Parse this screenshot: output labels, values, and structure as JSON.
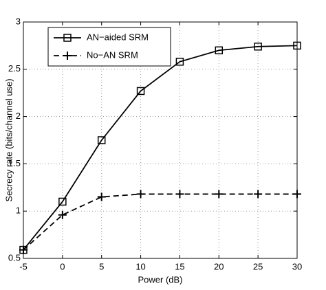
{
  "chart_data": {
    "type": "line",
    "xlabel": "Power (dB)",
    "ylabel": "Secrecy rate (bits/channel use)",
    "x": [
      -5,
      0,
      5,
      10,
      15,
      20,
      25,
      30
    ],
    "series": [
      {
        "name": "AN−aided SRM",
        "color": "#000000",
        "marker": "square",
        "linestyle": "solid",
        "values": [
          0.59,
          1.1,
          1.75,
          2.27,
          2.58,
          2.7,
          2.74,
          2.75
        ]
      },
      {
        "name": "No−AN SRM",
        "color": "#000000",
        "marker": "plus",
        "linestyle": "dashed",
        "values": [
          0.59,
          0.96,
          1.15,
          1.18,
          1.18,
          1.18,
          1.18,
          1.18
        ]
      }
    ],
    "xlim": [
      -5,
      30
    ],
    "xticks": [
      -5,
      0,
      5,
      10,
      15,
      20,
      25,
      30
    ],
    "ylim": [
      0.5,
      3
    ],
    "yticks": [
      0.5,
      1,
      1.5,
      2,
      2.5,
      3
    ],
    "grid": true,
    "legend": "upper left"
  }
}
